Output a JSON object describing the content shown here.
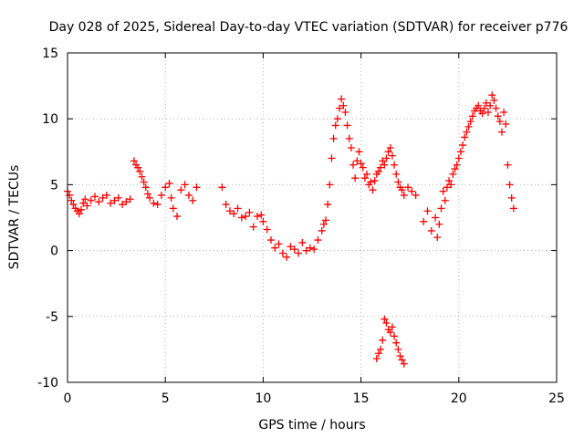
{
  "chart_data": {
    "type": "scatter",
    "title": "Day 028 of 2025, Sidereal Day-to-day VTEC variation (SDTVAR) for receiver p776",
    "xlabel": "GPS time / hours",
    "ylabel": "SDTVAR / TECUs",
    "xlim": [
      0,
      25
    ],
    "ylim": [
      -10,
      15
    ],
    "xticks": [
      0,
      5,
      10,
      15,
      20,
      25
    ],
    "yticks": [
      -10,
      -5,
      0,
      5,
      10,
      15
    ],
    "xtick_labels": [
      "0",
      "5",
      "10",
      "15",
      "20",
      "25"
    ],
    "ytick_labels": [
      "-10",
      "-5",
      "0",
      "5",
      "10",
      "15"
    ],
    "grid": true,
    "marker": "+",
    "color": "#ff0000",
    "series": [
      {
        "name": "SDTVAR",
        "x": [
          0.0,
          0.1,
          0.2,
          0.3,
          0.4,
          0.5,
          0.6,
          0.7,
          0.8,
          0.9,
          1.0,
          1.2,
          1.4,
          1.6,
          1.8,
          2.0,
          2.2,
          2.4,
          2.6,
          2.8,
          3.0,
          3.2,
          3.4,
          3.5,
          3.6,
          3.7,
          3.8,
          3.9,
          4.0,
          4.1,
          4.2,
          4.4,
          4.6,
          4.8,
          5.0,
          5.2,
          5.3,
          5.4,
          5.6,
          5.8,
          6.0,
          6.2,
          6.4,
          6.6,
          7.9,
          8.1,
          8.3,
          8.5,
          8.7,
          8.9,
          9.1,
          9.3,
          9.5,
          9.7,
          9.9,
          10.0,
          10.2,
          10.4,
          10.6,
          10.8,
          11.0,
          11.2,
          11.4,
          11.6,
          11.8,
          12.0,
          12.2,
          12.4,
          12.6,
          12.8,
          13.0,
          13.1,
          13.2,
          13.3,
          13.4,
          13.5,
          13.6,
          13.7,
          13.8,
          13.9,
          14.0,
          14.1,
          14.2,
          14.3,
          14.4,
          14.5,
          14.6,
          14.7,
          14.8,
          14.9,
          15.0,
          15.1,
          15.2,
          15.3,
          15.4,
          15.5,
          15.6,
          15.7,
          15.8,
          15.9,
          16.0,
          16.1,
          16.2,
          16.3,
          16.4,
          16.5,
          16.6,
          16.7,
          16.8,
          16.9,
          17.0,
          17.1,
          17.2,
          17.4,
          17.6,
          17.8,
          15.8,
          15.9,
          16.0,
          16.1,
          16.2,
          16.3,
          16.4,
          16.5,
          16.6,
          16.7,
          16.8,
          16.9,
          17.0,
          17.1,
          17.2,
          18.2,
          18.4,
          18.6,
          18.8,
          18.9,
          19.0,
          19.1,
          19.2,
          19.3,
          19.4,
          19.5,
          19.6,
          19.7,
          19.8,
          19.9,
          20.0,
          20.1,
          20.2,
          20.3,
          20.4,
          20.5,
          20.6,
          20.7,
          20.8,
          20.9,
          21.0,
          21.1,
          21.2,
          21.3,
          21.4,
          21.5,
          21.6,
          21.7,
          21.8,
          21.9,
          22.0,
          22.1,
          22.2,
          22.3,
          22.4,
          22.5,
          22.6,
          22.7,
          22.8
        ],
        "y": [
          4.5,
          4.2,
          3.8,
          3.5,
          3.2,
          3.0,
          2.8,
          3.1,
          3.6,
          3.9,
          3.4,
          3.8,
          4.1,
          3.7,
          4.0,
          4.2,
          3.6,
          3.8,
          4.0,
          3.5,
          3.7,
          3.9,
          6.8,
          6.5,
          6.3,
          6.0,
          5.6,
          5.2,
          4.8,
          4.3,
          4.0,
          3.6,
          3.5,
          4.2,
          4.8,
          5.1,
          4.0,
          3.2,
          2.6,
          4.6,
          5.0,
          4.2,
          3.8,
          4.8,
          4.8,
          3.5,
          3.0,
          2.8,
          3.2,
          2.5,
          2.6,
          2.9,
          1.8,
          2.6,
          2.7,
          2.2,
          1.6,
          0.8,
          0.2,
          0.5,
          -0.2,
          -0.5,
          0.3,
          0.1,
          -0.2,
          0.6,
          0.0,
          0.2,
          0.1,
          0.8,
          1.5,
          2.0,
          2.3,
          3.5,
          5.0,
          7.0,
          8.5,
          9.5,
          10.0,
          10.8,
          11.5,
          11.0,
          10.5,
          9.5,
          8.5,
          7.8,
          6.5,
          5.5,
          6.8,
          7.5,
          6.6,
          6.3,
          5.5,
          5.8,
          5.0,
          5.2,
          4.6,
          5.3,
          5.8,
          6.0,
          6.3,
          6.8,
          6.5,
          7.0,
          7.5,
          7.8,
          7.2,
          6.5,
          5.8,
          5.2,
          4.8,
          4.6,
          4.2,
          4.8,
          4.5,
          4.2,
          -8.2,
          -7.8,
          -7.5,
          -6.8,
          -5.2,
          -5.5,
          -6.0,
          -6.2,
          -5.8,
          -6.5,
          -7.0,
          -7.5,
          -8.0,
          -8.3,
          -8.6,
          2.2,
          3.0,
          1.5,
          2.5,
          1.0,
          2.0,
          3.2,
          4.5,
          3.8,
          4.8,
          5.3,
          5.0,
          5.8,
          6.2,
          6.5,
          7.0,
          7.5,
          8.0,
          8.6,
          9.0,
          9.4,
          9.8,
          10.2,
          10.6,
          10.8,
          11.0,
          10.6,
          10.4,
          10.8,
          11.2,
          10.5,
          11.0,
          11.8,
          11.4,
          10.8,
          10.2,
          9.8,
          9.0,
          10.5,
          9.6,
          6.5,
          5.0,
          4.0,
          3.2
        ]
      }
    ]
  }
}
